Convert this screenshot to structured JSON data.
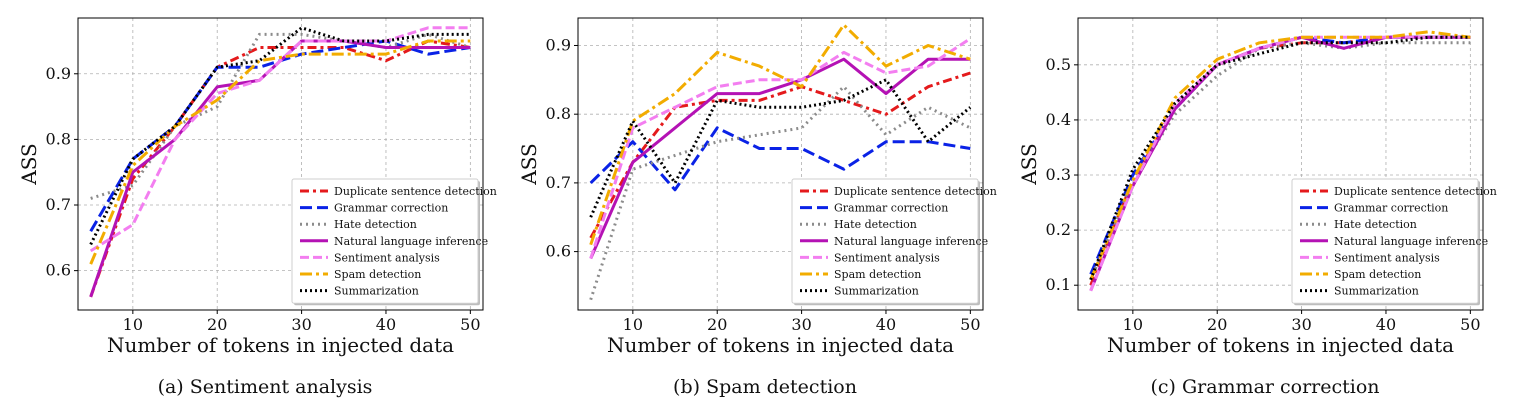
{
  "styles": {
    "colors": [
      "#e41a1c",
      "#0a22e6",
      "#8c8c8c",
      "#b412b4",
      "#f37ef0",
      "#f2ac00",
      "#000000"
    ],
    "dashes": [
      "9,4,3,4",
      "12,5",
      "2,4",
      "",
      "9,4",
      "12,4,3,4",
      "2,3"
    ]
  },
  "chart_data": [
    {
      "type": "line",
      "caption": "(a) Sentiment analysis",
      "xlabel": "Number of tokens in injected data",
      "ylabel": "ASS",
      "xlim": [
        3.5,
        51.5
      ],
      "ylim": [
        0.54,
        0.985
      ],
      "xticks": [
        10,
        20,
        30,
        40,
        50
      ],
      "yticks": [
        0.6,
        0.7,
        0.8,
        0.9
      ],
      "ytick_labels": [
        "0.6",
        "0.7",
        "0.8",
        "0.9"
      ],
      "grid": true,
      "legend": "lower-right",
      "x": [
        5,
        10,
        15,
        20,
        25,
        30,
        35,
        40,
        45,
        50
      ],
      "series": [
        {
          "name": "Duplicate sentence detection",
          "values": [
            0.56,
            0.74,
            0.82,
            0.91,
            0.94,
            0.94,
            0.94,
            0.92,
            0.95,
            0.94
          ]
        },
        {
          "name": "Grammar correction",
          "values": [
            0.66,
            0.77,
            0.82,
            0.91,
            0.91,
            0.93,
            0.94,
            0.95,
            0.93,
            0.94
          ]
        },
        {
          "name": "Hate detection",
          "values": [
            0.71,
            0.73,
            0.82,
            0.85,
            0.96,
            0.96,
            0.95,
            0.94,
            0.96,
            0.94
          ]
        },
        {
          "name": "Natural language inference",
          "values": [
            0.56,
            0.75,
            0.8,
            0.88,
            0.89,
            0.95,
            0.95,
            0.94,
            0.94,
            0.94
          ]
        },
        {
          "name": "Sentiment analysis",
          "values": [
            0.63,
            0.67,
            0.8,
            0.87,
            0.89,
            0.95,
            0.95,
            0.95,
            0.97,
            0.97
          ]
        },
        {
          "name": "Spam detection",
          "values": [
            0.61,
            0.76,
            0.82,
            0.86,
            0.92,
            0.93,
            0.93,
            0.93,
            0.95,
            0.95
          ]
        },
        {
          "name": "Summarization",
          "values": [
            0.64,
            0.77,
            0.82,
            0.91,
            0.92,
            0.97,
            0.95,
            0.95,
            0.96,
            0.96
          ]
        }
      ]
    },
    {
      "type": "line",
      "caption": "(b) Spam detection",
      "xlabel": "Number of tokens in injected data",
      "ylabel": "ASS",
      "xlim": [
        3.5,
        51.5
      ],
      "ylim": [
        0.515,
        0.94
      ],
      "xticks": [
        10,
        20,
        30,
        40,
        50
      ],
      "yticks": [
        0.6,
        0.7,
        0.8,
        0.9
      ],
      "ytick_labels": [
        "0.6",
        "0.7",
        "0.8",
        "0.9"
      ],
      "grid": true,
      "legend": "lower-right",
      "x": [
        5,
        10,
        15,
        20,
        25,
        30,
        35,
        40,
        45,
        50
      ],
      "series": [
        {
          "name": "Duplicate sentence detection",
          "values": [
            0.62,
            0.73,
            0.81,
            0.82,
            0.82,
            0.84,
            0.82,
            0.8,
            0.84,
            0.86
          ]
        },
        {
          "name": "Grammar correction",
          "values": [
            0.7,
            0.76,
            0.69,
            0.78,
            0.75,
            0.75,
            0.72,
            0.76,
            0.76,
            0.75
          ]
        },
        {
          "name": "Hate detection",
          "values": [
            0.53,
            0.72,
            0.74,
            0.76,
            0.77,
            0.78,
            0.84,
            0.77,
            0.81,
            0.78
          ]
        },
        {
          "name": "Natural language inference",
          "values": [
            0.59,
            0.73,
            0.78,
            0.83,
            0.83,
            0.85,
            0.88,
            0.83,
            0.88,
            0.88
          ]
        },
        {
          "name": "Sentiment analysis",
          "values": [
            0.59,
            0.78,
            0.81,
            0.84,
            0.85,
            0.85,
            0.89,
            0.86,
            0.87,
            0.91
          ]
        },
        {
          "name": "Spam detection",
          "values": [
            0.61,
            0.79,
            0.83,
            0.89,
            0.87,
            0.84,
            0.93,
            0.87,
            0.9,
            0.88
          ]
        },
        {
          "name": "Summarization",
          "values": [
            0.65,
            0.79,
            0.7,
            0.82,
            0.81,
            0.81,
            0.82,
            0.85,
            0.76,
            0.81
          ]
        }
      ]
    },
    {
      "type": "line",
      "caption": "(c) Grammar correction",
      "xlabel": "Number of tokens in injected data",
      "ylabel": "ASS",
      "xlim": [
        3.5,
        51.5
      ],
      "ylim": [
        0.055,
        0.585
      ],
      "xticks": [
        10,
        20,
        30,
        40,
        50
      ],
      "yticks": [
        0.1,
        0.2,
        0.3,
        0.4,
        0.5
      ],
      "ytick_labels": [
        "0.1",
        "0.2",
        "0.3",
        "0.4",
        "0.5"
      ],
      "grid": true,
      "legend": "lower-right",
      "x": [
        5,
        10,
        15,
        20,
        25,
        30,
        35,
        40,
        45,
        50
      ],
      "series": [
        {
          "name": "Duplicate sentence detection",
          "values": [
            0.1,
            0.29,
            0.42,
            0.5,
            0.53,
            0.54,
            0.54,
            0.55,
            0.55,
            0.55
          ]
        },
        {
          "name": "Grammar correction",
          "values": [
            0.12,
            0.3,
            0.42,
            0.5,
            0.53,
            0.55,
            0.54,
            0.55,
            0.55,
            0.55
          ]
        },
        {
          "name": "Hate detection",
          "values": [
            0.11,
            0.29,
            0.41,
            0.48,
            0.53,
            0.54,
            0.53,
            0.54,
            0.54,
            0.54
          ]
        },
        {
          "name": "Natural language inference",
          "values": [
            0.09,
            0.28,
            0.42,
            0.5,
            0.53,
            0.55,
            0.53,
            0.55,
            0.55,
            0.55
          ]
        },
        {
          "name": "Sentiment analysis",
          "values": [
            0.09,
            0.28,
            0.43,
            0.5,
            0.53,
            0.55,
            0.55,
            0.55,
            0.55,
            0.55
          ]
        },
        {
          "name": "Spam detection",
          "values": [
            0.11,
            0.29,
            0.44,
            0.51,
            0.54,
            0.55,
            0.55,
            0.55,
            0.56,
            0.55
          ]
        },
        {
          "name": "Summarization",
          "values": [
            0.11,
            0.31,
            0.43,
            0.5,
            0.52,
            0.54,
            0.54,
            0.54,
            0.55,
            0.55
          ]
        }
      ]
    }
  ]
}
